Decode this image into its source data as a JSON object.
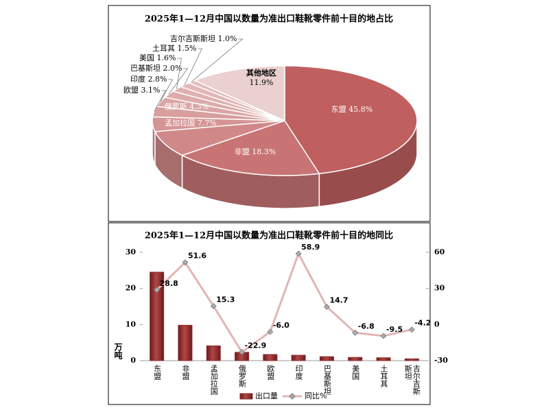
{
  "chart_data": [
    {
      "type": "pie",
      "title": "2025年1—12月中国以数量为准出口鞋靴零件前十目的地占比",
      "categories": [
        "东盟",
        "非盟",
        "孟加拉国",
        "俄罗斯",
        "欧盟",
        "印度",
        "巴基斯坦",
        "美国",
        "土耳其",
        "吉尔吉斯斯坦",
        "其他地区"
      ],
      "values": [
        45.8,
        18.3,
        7.7,
        4.3,
        3.1,
        2.8,
        2.0,
        1.6,
        1.5,
        1.0,
        11.9
      ],
      "value_labels": [
        "45.8%",
        "18.3%",
        "7.7%",
        "4.3%",
        "3.1%",
        "2.8%",
        "2.0%",
        "1.6%",
        "1.5%",
        "1.0%",
        "11.9%"
      ],
      "colors": [
        "#bf5f5f",
        "#c87474",
        "#d08888",
        "#d59595",
        "#d89e9e",
        "#dba5a5",
        "#ddabab",
        "#dfb1b1",
        "#e2b7b7",
        "#e4bdbd",
        "#ebd0d0"
      ]
    },
    {
      "type": "bar",
      "title": "2025年1—12月中国以数量为准出口鞋靴零件前十目的地同比",
      "categories": [
        "东盟",
        "非盟",
        "孟加拉国",
        "俄罗斯",
        "欧盟",
        "印度",
        "巴基斯坦",
        "美国",
        "土耳其",
        "吉尔吉斯斯坦"
      ],
      "y_label": "万吨",
      "ylim": [
        0,
        30
      ],
      "yticks": [
        0,
        10,
        20,
        30
      ],
      "y2lim": [
        -30,
        60
      ],
      "y2ticks": [
        -30,
        0,
        30,
        60
      ],
      "series": [
        {
          "name": "出口量",
          "type": "bar",
          "color": "#8e2c2c",
          "values": [
            24.5,
            9.8,
            4.1,
            2.3,
            1.7,
            1.5,
            1.1,
            0.9,
            0.8,
            0.5
          ]
        },
        {
          "name": "同比%",
          "type": "line",
          "axis": "y2",
          "color": "#e4b4b4",
          "values": [
            28.8,
            51.6,
            15.3,
            -22.9,
            -6.0,
            58.9,
            14.7,
            -6.8,
            -9.5,
            -4.2
          ],
          "value_labels": [
            "28.8",
            "51.6",
            "15.3",
            "-22.9",
            "-6.0",
            "58.9",
            "14.7",
            "-6.8",
            "-9.5",
            "-4.2"
          ]
        }
      ]
    }
  ]
}
